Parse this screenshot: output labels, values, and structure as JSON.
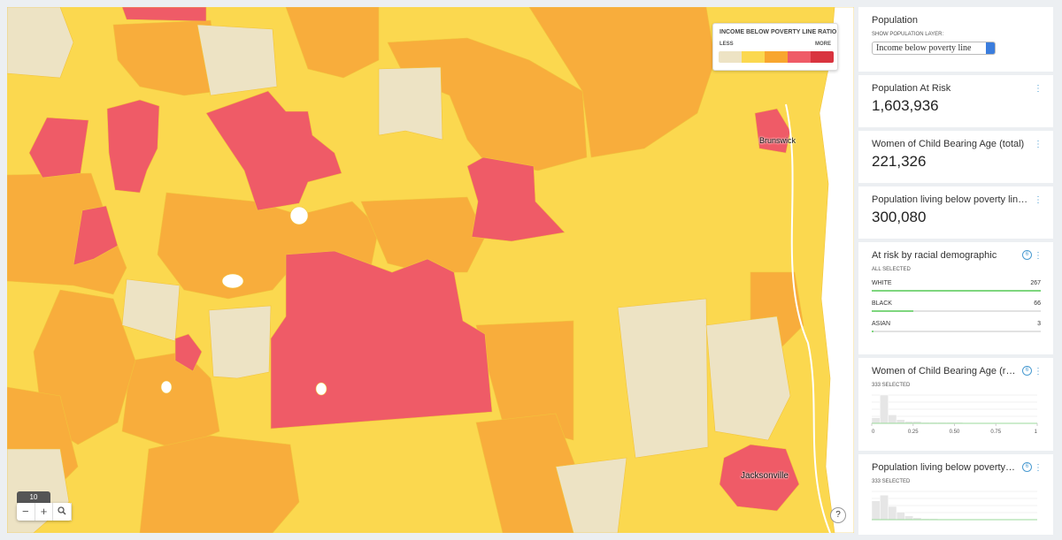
{
  "map": {
    "legend": {
      "title": "INCOME BELOW POVERTY LINE RATIO",
      "less": "LESS",
      "more": "MORE",
      "colors": [
        "#ede3c4",
        "#fbd84f",
        "#f8a62f",
        "#ef5b67",
        "#d9343f"
      ]
    },
    "places": [
      "Brunswick",
      "Jacksonville"
    ],
    "zoom": {
      "level": "10",
      "minus": "−",
      "plus": "+"
    },
    "help": "?"
  },
  "sidebar": {
    "layer": {
      "title": "Population",
      "label": "SHOW POPULATION LAYER:",
      "select": "Income below poverty line"
    },
    "stats": [
      {
        "title": "Population At Risk",
        "value": "1,603,936"
      },
      {
        "title": "Women of Child Bearing Age (total)",
        "value": "221,326"
      },
      {
        "title": "Population living below poverty line (total)",
        "value": "300,080"
      }
    ],
    "racial": {
      "title": "At risk by racial demographic",
      "badge": "6",
      "status": "ALL SELECTED",
      "rows": [
        {
          "name": "WHITE",
          "value": 267
        },
        {
          "name": "BLACK",
          "value": 66
        },
        {
          "name": "ASIAN",
          "value": 3
        }
      ]
    },
    "histograms": [
      {
        "title": "Women of Child Bearing Age (ratio)",
        "badge": "6",
        "status": "333 SELECTED",
        "bins": [
          0,
          0.05,
          0.1,
          0.15,
          0.2,
          0.25,
          0.3,
          0.35,
          0.4,
          0.45,
          0.5,
          0.55,
          0.6,
          0.65,
          0.7,
          0.75,
          0.8,
          0.85,
          0.9,
          0.95,
          1
        ],
        "counts": [
          6,
          30,
          9,
          4,
          2,
          2,
          1,
          1,
          1,
          1,
          1,
          0,
          0,
          0,
          0,
          0,
          0,
          0,
          0,
          0
        ],
        "ylim": [
          0,
          30
        ],
        "xlim": [
          0,
          1
        ],
        "xticks": [
          0,
          0.25,
          {
            "value": 0.5,
            "label": "0.50"
          },
          0.75,
          1
        ]
      },
      {
        "title": "Population living below poverty line (ratio)",
        "badge": "6",
        "status": "333 SELECTED",
        "bins": [
          0,
          0.05,
          0.1,
          0.15,
          0.2,
          0.25,
          0.3,
          0.35,
          0.4,
          0.45,
          0.5
        ],
        "counts": [
          20,
          26,
          14,
          8,
          4,
          2,
          1,
          1,
          0,
          0
        ],
        "ylim": [
          0,
          30
        ],
        "xlim": [
          0,
          1
        ]
      }
    ]
  }
}
